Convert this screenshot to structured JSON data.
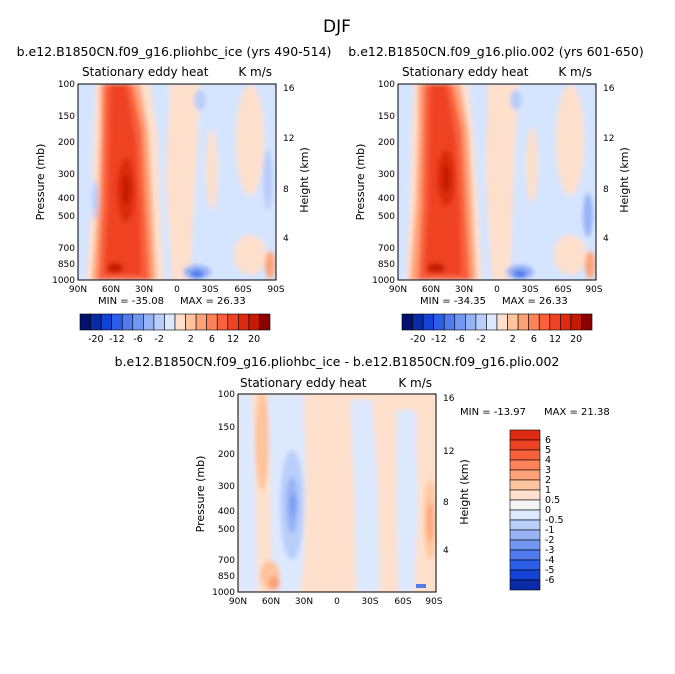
{
  "page": {
    "title": "DJF"
  },
  "colors": {
    "cmap_red": [
      "#ffe0cc",
      "#ffc49e",
      "#ffa277",
      "#ff8259",
      "#f9603c",
      "#ee4323",
      "#dd2a10",
      "#c41a04",
      "#8c0000"
    ],
    "cmap_blue": [
      "#dde9ff",
      "#b9cefb",
      "#96b3f6",
      "#7297f2",
      "#4f7bee",
      "#2b5fe9",
      "#1243d6",
      "#0a2ba8",
      "#01126e"
    ],
    "zero": "#f5f5f5",
    "background": "#d6e5ff"
  },
  "chart_data": [
    {
      "id": "panel-1",
      "type": "heatmap",
      "title": "b.e12.B1850CN.f09_g16.pliohbc_ice (yrs 490-514)",
      "left_label": "Stationary eddy heat",
      "right_label": "K m/s",
      "ylabel": "Pressure (mb)",
      "y2label": "Height (km)",
      "x_ticks": [
        "90N",
        "60N",
        "30N",
        "0",
        "30S",
        "60S",
        "90S"
      ],
      "y_ticks": [
        "100",
        "150",
        "200",
        "300",
        "400",
        "500",
        "700",
        "850",
        "1000"
      ],
      "y2_ticks": [
        "16",
        "12",
        "8",
        "4"
      ],
      "min_label": "MIN = -35.08",
      "max_label": "MAX = 26.33",
      "colorbar_labels": [
        "-20",
        "-12",
        "-6",
        "-2",
        "2",
        "6",
        "12",
        "20"
      ]
    },
    {
      "id": "panel-2",
      "type": "heatmap",
      "title": "b.e12.B1850CN.f09_g16.plio.002 (yrs 601-650)",
      "left_label": "Stationary eddy heat",
      "right_label": "K m/s",
      "ylabel": "Pressure (mb)",
      "y2label": "Height (km)",
      "x_ticks": [
        "90N",
        "60N",
        "30N",
        "0",
        "30S",
        "60S",
        "90S"
      ],
      "y_ticks": [
        "100",
        "150",
        "200",
        "300",
        "400",
        "500",
        "700",
        "850",
        "1000"
      ],
      "y2_ticks": [
        "16",
        "12",
        "8",
        "4"
      ],
      "min_label": "MIN = -34.35",
      "max_label": "MAX = 26.33",
      "colorbar_labels": [
        "-20",
        "-12",
        "-6",
        "-2",
        "2",
        "6",
        "12",
        "20"
      ]
    },
    {
      "id": "panel-3",
      "type": "heatmap",
      "title": "b.e12.B1850CN.f09_g16.pliohbc_ice - b.e12.B1850CN.f09_g16.plio.002",
      "left_label": "Stationary eddy heat",
      "right_label": "K m/s",
      "ylabel": "Pressure (mb)",
      "y2label": "Height (km)",
      "x_ticks": [
        "90N",
        "60N",
        "30N",
        "0",
        "30S",
        "60S",
        "90S"
      ],
      "y_ticks": [
        "100",
        "150",
        "200",
        "300",
        "400",
        "500",
        "700",
        "850",
        "1000"
      ],
      "y2_ticks": [
        "16",
        "12",
        "8",
        "4"
      ],
      "min_label": "MIN = -13.97",
      "max_label": "MAX =  21.38",
      "colorbar_labels": [
        "6",
        "5",
        "4",
        "3",
        "2",
        "1",
        "0.5",
        "0",
        "-0.5",
        "-1",
        "-2",
        "-3",
        "-4",
        "-5",
        "-6"
      ]
    }
  ]
}
